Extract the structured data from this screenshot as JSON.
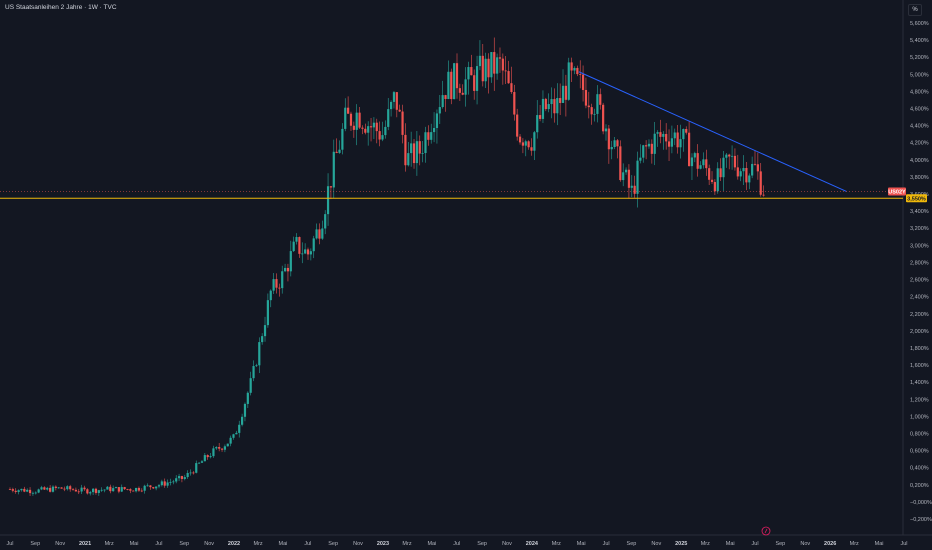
{
  "header": {
    "title": "US Staatsanleihen 2 Jahre · 1W · TVC",
    "scale_button": "%"
  },
  "colors": {
    "background": "#131722",
    "up": "#26a69a",
    "down": "#ef5350",
    "trendline": "#2962ff",
    "support": "#f0b90b",
    "axis_text": "#b2b5be"
  },
  "chart_data": {
    "type": "candlestick",
    "symbol_badge": "US02Y",
    "support_label": "3,550%",
    "current_value": 3.63,
    "support_level": 3.55,
    "ylim": [
      -0.25,
      5.75
    ],
    "y_ticks": [
      "5,600%",
      "5,400%",
      "5,200%",
      "5,000%",
      "4,800%",
      "4,600%",
      "4,400%",
      "4,200%",
      "4,000%",
      "3,800%",
      "3,600%",
      "3,400%",
      "3,200%",
      "3,000%",
      "2,800%",
      "2,600%",
      "2,400%",
      "2,200%",
      "2,000%",
      "1,800%",
      "1,600%",
      "1,400%",
      "1,200%",
      "1,000%",
      "0,800%",
      "0,600%",
      "0,400%",
      "0,200%",
      "−0,000%",
      "−0,200%"
    ],
    "y_tick_values": [
      5.6,
      5.4,
      5.2,
      5.0,
      4.8,
      4.6,
      4.4,
      4.2,
      4.0,
      3.8,
      3.6,
      3.4,
      3.2,
      3.0,
      2.8,
      2.6,
      2.4,
      2.2,
      2.0,
      1.8,
      1.6,
      1.4,
      1.2,
      1.0,
      0.8,
      0.6,
      0.4,
      0.2,
      0.0,
      -0.2
    ],
    "x_ticks": [
      "Jul",
      "Sep",
      "Nov",
      "2021",
      "Mrz",
      "Mai",
      "Jul",
      "Sep",
      "Nov",
      "2022",
      "Mrz",
      "Mai",
      "Jul",
      "Sep",
      "Nov",
      "2023",
      "Mrz",
      "Mai",
      "Jul",
      "Sep",
      "Nov",
      "2024",
      "Mrz",
      "Mai",
      "Jul",
      "Sep",
      "Nov",
      "2025",
      "Mrz",
      "Mai",
      "Jul",
      "Sep",
      "Nov",
      "2026",
      "Mrz",
      "Mai",
      "Jul"
    ],
    "x_tick_dates": [
      "2020-07",
      "2020-09",
      "2020-11",
      "2021-01",
      "2021-03",
      "2021-05",
      "2021-07",
      "2021-09",
      "2021-11",
      "2022-01",
      "2022-03",
      "2022-05",
      "2022-07",
      "2022-09",
      "2022-11",
      "2023-01",
      "2023-03",
      "2023-05",
      "2023-07",
      "2023-09",
      "2023-11",
      "2024-01",
      "2024-03",
      "2024-05",
      "2024-07",
      "2024-09",
      "2024-11",
      "2025-01",
      "2025-03",
      "2025-05",
      "2025-07",
      "2025-09",
      "2025-11",
      "2026-01",
      "2026-03",
      "2026-05",
      "2026-07"
    ],
    "x_ticks_bold": [
      "2021",
      "2022",
      "2023",
      "2024",
      "2025",
      "2026"
    ],
    "closes": [
      {
        "date": "2020-07-01",
        "close": 0.15
      },
      {
        "date": "2020-09-01",
        "close": 0.13
      },
      {
        "date": "2020-11-01",
        "close": 0.16
      },
      {
        "date": "2021-01-01",
        "close": 0.13
      },
      {
        "date": "2021-03-01",
        "close": 0.15
      },
      {
        "date": "2021-05-01",
        "close": 0.15
      },
      {
        "date": "2021-07-01",
        "close": 0.2
      },
      {
        "date": "2021-09-01",
        "close": 0.28
      },
      {
        "date": "2021-11-01",
        "close": 0.55
      },
      {
        "date": "2022-01-01",
        "close": 0.75
      },
      {
        "date": "2022-02-15",
        "close": 1.45
      },
      {
        "date": "2022-04-01",
        "close": 2.45
      },
      {
        "date": "2022-05-01",
        "close": 2.65
      },
      {
        "date": "2022-06-01",
        "close": 3.0
      },
      {
        "date": "2022-07-01",
        "close": 2.9
      },
      {
        "date": "2022-08-01",
        "close": 3.25
      },
      {
        "date": "2022-09-01",
        "close": 3.9
      },
      {
        "date": "2022-10-01",
        "close": 4.45
      },
      {
        "date": "2022-11-01",
        "close": 4.55
      },
      {
        "date": "2022-12-01",
        "close": 4.4
      },
      {
        "date": "2023-01-01",
        "close": 4.3
      },
      {
        "date": "2023-02-01",
        "close": 4.75
      },
      {
        "date": "2023-03-01",
        "close": 4.0
      },
      {
        "date": "2023-04-01",
        "close": 4.1
      },
      {
        "date": "2023-05-01",
        "close": 4.5
      },
      {
        "date": "2023-06-01",
        "close": 4.85
      },
      {
        "date": "2023-07-01",
        "close": 4.95
      },
      {
        "date": "2023-08-01",
        "close": 4.9
      },
      {
        "date": "2023-09-01",
        "close": 5.05
      },
      {
        "date": "2023-10-15",
        "close": 5.1
      },
      {
        "date": "2023-11-01",
        "close": 4.9
      },
      {
        "date": "2023-12-01",
        "close": 4.3
      },
      {
        "date": "2024-01-01",
        "close": 4.25
      },
      {
        "date": "2024-02-01",
        "close": 4.6
      },
      {
        "date": "2024-03-01",
        "close": 4.6
      },
      {
        "date": "2024-04-01",
        "close": 4.95
      },
      {
        "date": "2024-05-01",
        "close": 4.85
      },
      {
        "date": "2024-06-01",
        "close": 4.7
      },
      {
        "date": "2024-07-01",
        "close": 4.4
      },
      {
        "date": "2024-08-01",
        "close": 3.95
      },
      {
        "date": "2024-09-01",
        "close": 3.6
      },
      {
        "date": "2024-10-01",
        "close": 4.1
      },
      {
        "date": "2024-11-01",
        "close": 4.25
      },
      {
        "date": "2024-12-01",
        "close": 4.3
      },
      {
        "date": "2025-01-01",
        "close": 4.25
      },
      {
        "date": "2025-02-01",
        "close": 4.0
      },
      {
        "date": "2025-03-01",
        "close": 3.9
      },
      {
        "date": "2025-04-01",
        "close": 3.75
      },
      {
        "date": "2025-05-01",
        "close": 4.0
      },
      {
        "date": "2025-06-01",
        "close": 3.9
      },
      {
        "date": "2025-07-01",
        "close": 3.9
      },
      {
        "date": "2025-07-25",
        "close": 3.63
      }
    ],
    "trendline": {
      "start": {
        "date": "2024-04-25",
        "value": 5.03
      },
      "end": {
        "date": "2026-02-10",
        "value": 3.63
      }
    },
    "annotation_icon": "tradingview-logo-icon"
  }
}
